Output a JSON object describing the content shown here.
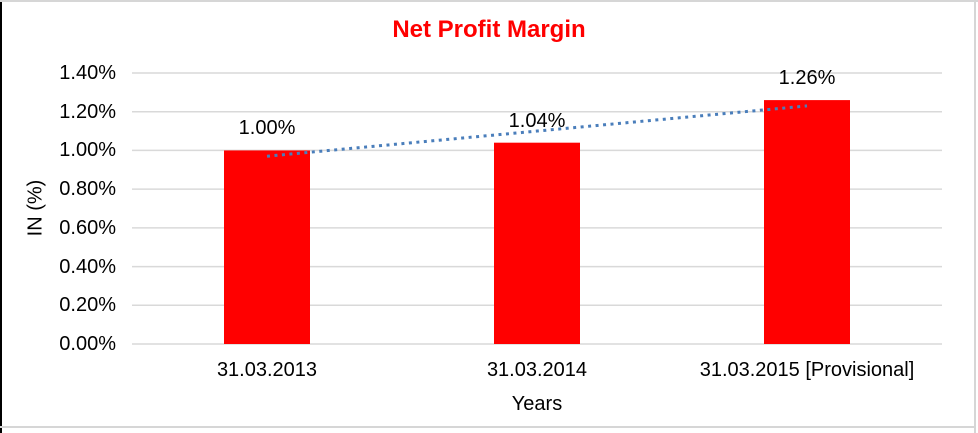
{
  "chart_data": {
    "type": "bar",
    "title": "Net Profit Margin",
    "categories": [
      "31.03.2013",
      "31.03.2014",
      "31.03.2015 [Provisional]"
    ],
    "values": [
      1.0,
      1.04,
      1.26
    ],
    "data_labels": [
      "1.00%",
      "1.04%",
      "1.26%"
    ],
    "xlabel": "Years",
    "ylabel": "IN (%)",
    "ylim": [
      0,
      1.4
    ],
    "ytick_step": 0.2,
    "ytick_labels": [
      "0.00%",
      "0.20%",
      "0.40%",
      "0.60%",
      "0.80%",
      "1.00%",
      "1.20%",
      "1.40%"
    ],
    "grid": true,
    "legend": false,
    "trendline": {
      "type": "linear",
      "style": "dotted"
    }
  },
  "colors": {
    "bar": "#ff0000",
    "title": "#ff0000",
    "trendline": "#4a7ebb",
    "gridline": "#d9d9d9",
    "frame": "#d6d6d6",
    "left_edge": "#000000",
    "text": "#000000"
  }
}
